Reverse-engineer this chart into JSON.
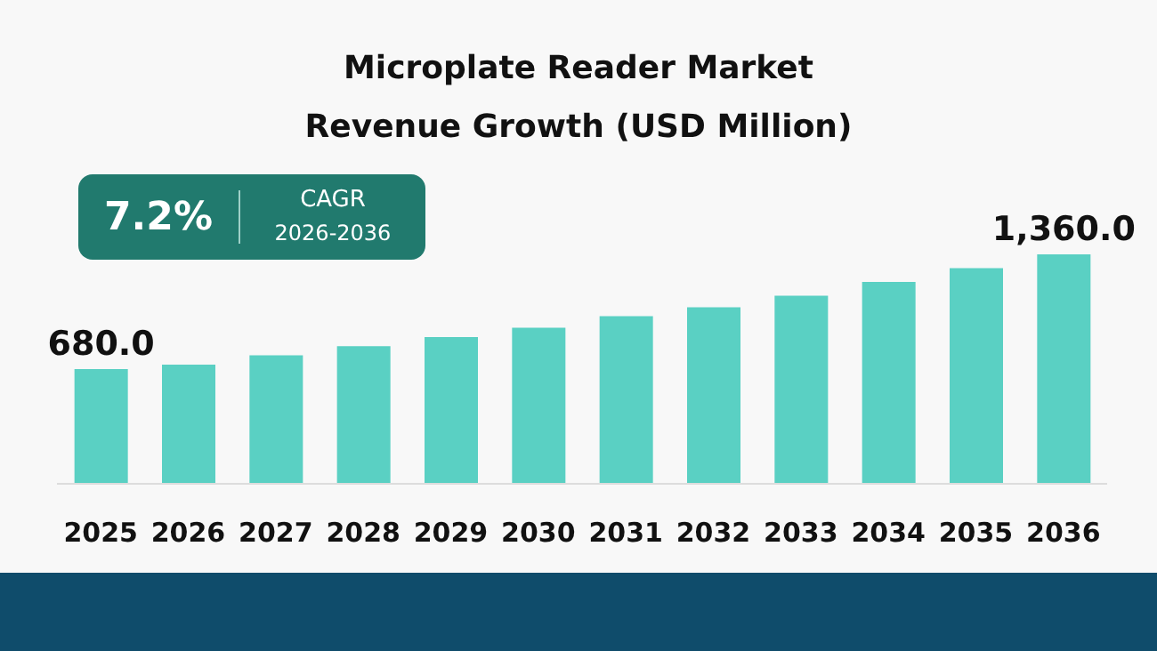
{
  "chart_data": {
    "type": "bar",
    "title": "Microplate Reader Market\nRevenue Growth (USD Million)",
    "categories": [
      "2025",
      "2026",
      "2027",
      "2028",
      "2029",
      "2030",
      "2031",
      "2032",
      "2033",
      "2034",
      "2035",
      "2036"
    ],
    "values": [
      680,
      707,
      762,
      816,
      870,
      925,
      993,
      1047,
      1115,
      1197,
      1278,
      1360
    ],
    "value_labels": [
      "680.0",
      null,
      null,
      null,
      null,
      null,
      null,
      null,
      null,
      null,
      null,
      "1,360.0"
    ],
    "color": "#5ad0c3",
    "annotations": [
      "7.2%",
      "CAGR",
      "2026-2036"
    ]
  }
}
